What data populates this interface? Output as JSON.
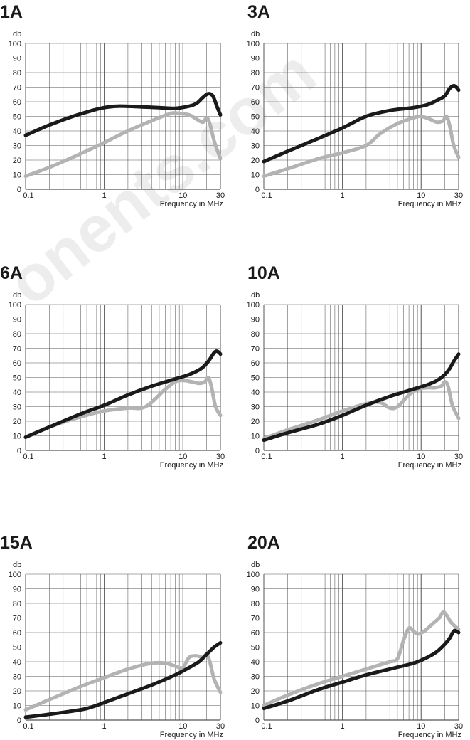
{
  "chart_data": [
    {
      "type": "line",
      "title": "1A",
      "ylabel": "db",
      "xlabel": "Frequency in MHz",
      "x_scale": "log",
      "xlim": [
        0.1,
        30
      ],
      "ylim": [
        0,
        100
      ],
      "x_tick_labels": [
        "0.1",
        "1",
        "10",
        "30"
      ],
      "y_tick_labels": [
        "0",
        "10",
        "20",
        "30",
        "40",
        "50",
        "60",
        "70",
        "80",
        "90",
        "100"
      ],
      "series": [
        {
          "color": "#1a1a1a",
          "points": [
            [
              0.1,
              37
            ],
            [
              0.2,
              44
            ],
            [
              0.4,
              50
            ],
            [
              0.7,
              54
            ],
            [
              1,
              56
            ],
            [
              1.5,
              57
            ],
            [
              3,
              56.5
            ],
            [
              5,
              56
            ],
            [
              8,
              55.5
            ],
            [
              12,
              57
            ],
            [
              15,
              59
            ],
            [
              18,
              63
            ],
            [
              21,
              65.5
            ],
            [
              24,
              64
            ],
            [
              27,
              57
            ],
            [
              30,
              51
            ]
          ]
        },
        {
          "color": "#b3b3b3",
          "points": [
            [
              0.1,
              9
            ],
            [
              0.2,
              15
            ],
            [
              0.4,
              22
            ],
            [
              0.7,
              28
            ],
            [
              1,
              32
            ],
            [
              2,
              40
            ],
            [
              4,
              47
            ],
            [
              7,
              52
            ],
            [
              9,
              52
            ],
            [
              12,
              51
            ],
            [
              15,
              48
            ],
            [
              18,
              46
            ],
            [
              20,
              49
            ],
            [
              22,
              45
            ],
            [
              25,
              33
            ],
            [
              30,
              21
            ]
          ]
        }
      ]
    },
    {
      "type": "line",
      "title": "3A",
      "ylabel": "db",
      "xlabel": "Frequency in MHz",
      "x_scale": "log",
      "xlim": [
        0.1,
        30
      ],
      "ylim": [
        0,
        100
      ],
      "x_tick_labels": [
        "0.1",
        "1",
        "10",
        "30"
      ],
      "y_tick_labels": [
        "0",
        "10",
        "20",
        "30",
        "40",
        "50",
        "60",
        "70",
        "80",
        "90",
        "100"
      ],
      "series": [
        {
          "color": "#1a1a1a",
          "points": [
            [
              0.1,
              19
            ],
            [
              0.2,
              26
            ],
            [
              0.5,
              35
            ],
            [
              1,
              42
            ],
            [
              2,
              50
            ],
            [
              4,
              54
            ],
            [
              8,
              56
            ],
            [
              12,
              58
            ],
            [
              16,
              61
            ],
            [
              20,
              64
            ],
            [
              23,
              69
            ],
            [
              26,
              71
            ],
            [
              28,
              70
            ],
            [
              30,
              68
            ]
          ]
        },
        {
          "color": "#b3b3b3",
          "points": [
            [
              0.1,
              9
            ],
            [
              0.2,
              14
            ],
            [
              0.5,
              21
            ],
            [
              1,
              25
            ],
            [
              2,
              30
            ],
            [
              3,
              38
            ],
            [
              5,
              45
            ],
            [
              8,
              49
            ],
            [
              10,
              50
            ],
            [
              13,
              48
            ],
            [
              16,
              46
            ],
            [
              19,
              47
            ],
            [
              21,
              50
            ],
            [
              23,
              44
            ],
            [
              26,
              30
            ],
            [
              30,
              22
            ]
          ]
        }
      ]
    },
    {
      "type": "line",
      "title": "6A",
      "ylabel": "db",
      "xlabel": "Frequency in MHz",
      "x_scale": "log",
      "xlim": [
        0.1,
        30
      ],
      "ylim": [
        0,
        100
      ],
      "x_tick_labels": [
        "0.1",
        "1",
        "10",
        "30"
      ],
      "y_tick_labels": [
        "0",
        "10",
        "20",
        "30",
        "40",
        "50",
        "60",
        "70",
        "80",
        "90",
        "100"
      ],
      "series": [
        {
          "color": "#1a1a1a",
          "points": [
            [
              0.1,
              9
            ],
            [
              0.2,
              16
            ],
            [
              0.5,
              25
            ],
            [
              1,
              31
            ],
            [
              2,
              38
            ],
            [
              4,
              44
            ],
            [
              8,
              49
            ],
            [
              12,
              52
            ],
            [
              17,
              56
            ],
            [
              21,
              61
            ],
            [
              25,
              67
            ],
            [
              27,
              68
            ],
            [
              29,
              67
            ],
            [
              30,
              66
            ]
          ]
        },
        {
          "color": "#b3b3b3",
          "points": [
            [
              0.1,
              9
            ],
            [
              0.2,
              16
            ],
            [
              0.5,
              23
            ],
            [
              1,
              27
            ],
            [
              2,
              29
            ],
            [
              3,
              29
            ],
            [
              4,
              33
            ],
            [
              6,
              42
            ],
            [
              8,
              47
            ],
            [
              10,
              48
            ],
            [
              13,
              47
            ],
            [
              16,
              46
            ],
            [
              19,
              47
            ],
            [
              21,
              50
            ],
            [
              23,
              44
            ],
            [
              26,
              30
            ],
            [
              30,
              24
            ]
          ]
        }
      ]
    },
    {
      "type": "line",
      "title": "10A",
      "ylabel": "db",
      "xlabel": "Frequency in MHz",
      "x_scale": "log",
      "xlim": [
        0.1,
        30
      ],
      "ylim": [
        0,
        100
      ],
      "x_tick_labels": [
        "0.1",
        "1",
        "10",
        "30"
      ],
      "y_tick_labels": [
        "0",
        "10",
        "20",
        "30",
        "40",
        "50",
        "60",
        "70",
        "80",
        "90",
        "100"
      ],
      "series": [
        {
          "color": "#1a1a1a",
          "points": [
            [
              0.1,
              7
            ],
            [
              0.2,
              12
            ],
            [
              0.5,
              18
            ],
            [
              1,
              24
            ],
            [
              2,
              31
            ],
            [
              4,
              37
            ],
            [
              8,
              42
            ],
            [
              12,
              45
            ],
            [
              16,
              48
            ],
            [
              20,
              52
            ],
            [
              23,
              56
            ],
            [
              26,
              61
            ],
            [
              30,
              66
            ]
          ]
        },
        {
          "color": "#b3b3b3",
          "points": [
            [
              0.1,
              8
            ],
            [
              0.2,
              14
            ],
            [
              0.5,
              21
            ],
            [
              1,
              27
            ],
            [
              2,
              32
            ],
            [
              3,
              33
            ],
            [
              4,
              29
            ],
            [
              5,
              30
            ],
            [
              7,
              38
            ],
            [
              9,
              42
            ],
            [
              12,
              43
            ],
            [
              15,
              43
            ],
            [
              18,
              44
            ],
            [
              20,
              47
            ],
            [
              22,
              44
            ],
            [
              25,
              31
            ],
            [
              30,
              22
            ]
          ]
        }
      ]
    },
    {
      "type": "line",
      "title": "15A",
      "ylabel": "db",
      "xlabel": "Frequency in MHz",
      "x_scale": "log",
      "xlim": [
        0.1,
        30
      ],
      "ylim": [
        0,
        100
      ],
      "x_tick_labels": [
        "0.1",
        "1",
        "10",
        "30"
      ],
      "y_tick_labels": [
        "0",
        "10",
        "20",
        "30",
        "40",
        "50",
        "60",
        "70",
        "80",
        "90",
        "100"
      ],
      "series": [
        {
          "color": "#1a1a1a",
          "points": [
            [
              0.1,
              2
            ],
            [
              0.2,
              4
            ],
            [
              0.5,
              7
            ],
            [
              0.7,
              9
            ],
            [
              1,
              12
            ],
            [
              2,
              18
            ],
            [
              4,
              24
            ],
            [
              8,
              31
            ],
            [
              12,
              36
            ],
            [
              16,
              40
            ],
            [
              20,
              45
            ],
            [
              25,
              50
            ],
            [
              30,
              53
            ]
          ]
        },
        {
          "color": "#b3b3b3",
          "points": [
            [
              0.1,
              7
            ],
            [
              0.2,
              14
            ],
            [
              0.5,
              23
            ],
            [
              1,
              29
            ],
            [
              2,
              35
            ],
            [
              4,
              39
            ],
            [
              6,
              39
            ],
            [
              8,
              37
            ],
            [
              10,
              36
            ],
            [
              12,
              43
            ],
            [
              15,
              44
            ],
            [
              18,
              43
            ],
            [
              20,
              45
            ],
            [
              22,
              40
            ],
            [
              25,
              28
            ],
            [
              30,
              19
            ]
          ]
        }
      ]
    },
    {
      "type": "line",
      "title": "20A",
      "ylabel": "db",
      "xlabel": "Frequency in MHz",
      "x_scale": "log",
      "xlim": [
        0.1,
        30
      ],
      "ylim": [
        0,
        100
      ],
      "x_tick_labels": [
        "0.1",
        "1",
        "10",
        "30"
      ],
      "y_tick_labels": [
        "0",
        "10",
        "20",
        "30",
        "40",
        "50",
        "60",
        "70",
        "80",
        "90",
        "100"
      ],
      "series": [
        {
          "color": "#1a1a1a",
          "points": [
            [
              0.1,
              8
            ],
            [
              0.2,
              13
            ],
            [
              0.5,
              21
            ],
            [
              1,
              26
            ],
            [
              2,
              31
            ],
            [
              4,
              35
            ],
            [
              8,
              39
            ],
            [
              12,
              43
            ],
            [
              16,
              47
            ],
            [
              20,
              52
            ],
            [
              23,
              56
            ],
            [
              26,
              61
            ],
            [
              28,
              61
            ],
            [
              30,
              60
            ]
          ]
        },
        {
          "color": "#b3b3b3",
          "points": [
            [
              0.1,
              10
            ],
            [
              0.2,
              17
            ],
            [
              0.5,
              25
            ],
            [
              1,
              30
            ],
            [
              2,
              35
            ],
            [
              4,
              40
            ],
            [
              5,
              42
            ],
            [
              6,
              55
            ],
            [
              7,
              63
            ],
            [
              8,
              61
            ],
            [
              9,
              59
            ],
            [
              11,
              61
            ],
            [
              14,
              66
            ],
            [
              17,
              70
            ],
            [
              19,
              74
            ],
            [
              21,
              72
            ],
            [
              24,
              67
            ],
            [
              30,
              62
            ]
          ]
        }
      ]
    }
  ]
}
